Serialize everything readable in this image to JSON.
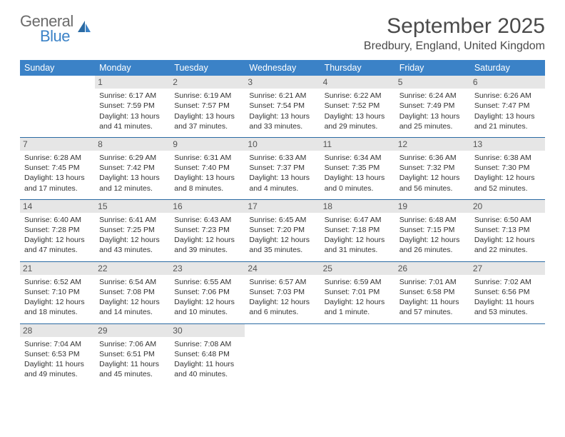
{
  "brand": {
    "line1": "General",
    "line2": "Blue"
  },
  "title": "September 2025",
  "location": "Bredbury, England, United Kingdom",
  "colors": {
    "header_bg": "#3b82c7",
    "header_text": "#ffffff",
    "daynum_bg": "#e6e6e6",
    "row_border": "#2a6aa3",
    "title_text": "#4a4a4a",
    "body_text": "#333333",
    "logo_gray": "#6b6b6b",
    "logo_blue": "#3b82c7",
    "page_bg": "#ffffff"
  },
  "typography": {
    "title_fontsize": 30,
    "location_fontsize": 16,
    "dayheader_fontsize": 12.5,
    "daynum_fontsize": 12,
    "cell_fontsize": 10.5
  },
  "layout": {
    "columns": 7,
    "rows": 5,
    "first_day_column_index": 1
  },
  "day_headers": [
    "Sunday",
    "Monday",
    "Tuesday",
    "Wednesday",
    "Thursday",
    "Friday",
    "Saturday"
  ],
  "days": [
    {
      "n": 1,
      "sunrise": "6:17 AM",
      "sunset": "7:59 PM",
      "daylight": "13 hours and 41 minutes."
    },
    {
      "n": 2,
      "sunrise": "6:19 AM",
      "sunset": "7:57 PM",
      "daylight": "13 hours and 37 minutes."
    },
    {
      "n": 3,
      "sunrise": "6:21 AM",
      "sunset": "7:54 PM",
      "daylight": "13 hours and 33 minutes."
    },
    {
      "n": 4,
      "sunrise": "6:22 AM",
      "sunset": "7:52 PM",
      "daylight": "13 hours and 29 minutes."
    },
    {
      "n": 5,
      "sunrise": "6:24 AM",
      "sunset": "7:49 PM",
      "daylight": "13 hours and 25 minutes."
    },
    {
      "n": 6,
      "sunrise": "6:26 AM",
      "sunset": "7:47 PM",
      "daylight": "13 hours and 21 minutes."
    },
    {
      "n": 7,
      "sunrise": "6:28 AM",
      "sunset": "7:45 PM",
      "daylight": "13 hours and 17 minutes."
    },
    {
      "n": 8,
      "sunrise": "6:29 AM",
      "sunset": "7:42 PM",
      "daylight": "13 hours and 12 minutes."
    },
    {
      "n": 9,
      "sunrise": "6:31 AM",
      "sunset": "7:40 PM",
      "daylight": "13 hours and 8 minutes."
    },
    {
      "n": 10,
      "sunrise": "6:33 AM",
      "sunset": "7:37 PM",
      "daylight": "13 hours and 4 minutes."
    },
    {
      "n": 11,
      "sunrise": "6:34 AM",
      "sunset": "7:35 PM",
      "daylight": "13 hours and 0 minutes."
    },
    {
      "n": 12,
      "sunrise": "6:36 AM",
      "sunset": "7:32 PM",
      "daylight": "12 hours and 56 minutes."
    },
    {
      "n": 13,
      "sunrise": "6:38 AM",
      "sunset": "7:30 PM",
      "daylight": "12 hours and 52 minutes."
    },
    {
      "n": 14,
      "sunrise": "6:40 AM",
      "sunset": "7:28 PM",
      "daylight": "12 hours and 47 minutes."
    },
    {
      "n": 15,
      "sunrise": "6:41 AM",
      "sunset": "7:25 PM",
      "daylight": "12 hours and 43 minutes."
    },
    {
      "n": 16,
      "sunrise": "6:43 AM",
      "sunset": "7:23 PM",
      "daylight": "12 hours and 39 minutes."
    },
    {
      "n": 17,
      "sunrise": "6:45 AM",
      "sunset": "7:20 PM",
      "daylight": "12 hours and 35 minutes."
    },
    {
      "n": 18,
      "sunrise": "6:47 AM",
      "sunset": "7:18 PM",
      "daylight": "12 hours and 31 minutes."
    },
    {
      "n": 19,
      "sunrise": "6:48 AM",
      "sunset": "7:15 PM",
      "daylight": "12 hours and 26 minutes."
    },
    {
      "n": 20,
      "sunrise": "6:50 AM",
      "sunset": "7:13 PM",
      "daylight": "12 hours and 22 minutes."
    },
    {
      "n": 21,
      "sunrise": "6:52 AM",
      "sunset": "7:10 PM",
      "daylight": "12 hours and 18 minutes."
    },
    {
      "n": 22,
      "sunrise": "6:54 AM",
      "sunset": "7:08 PM",
      "daylight": "12 hours and 14 minutes."
    },
    {
      "n": 23,
      "sunrise": "6:55 AM",
      "sunset": "7:06 PM",
      "daylight": "12 hours and 10 minutes."
    },
    {
      "n": 24,
      "sunrise": "6:57 AM",
      "sunset": "7:03 PM",
      "daylight": "12 hours and 6 minutes."
    },
    {
      "n": 25,
      "sunrise": "6:59 AM",
      "sunset": "7:01 PM",
      "daylight": "12 hours and 1 minute."
    },
    {
      "n": 26,
      "sunrise": "7:01 AM",
      "sunset": "6:58 PM",
      "daylight": "11 hours and 57 minutes."
    },
    {
      "n": 27,
      "sunrise": "7:02 AM",
      "sunset": "6:56 PM",
      "daylight": "11 hours and 53 minutes."
    },
    {
      "n": 28,
      "sunrise": "7:04 AM",
      "sunset": "6:53 PM",
      "daylight": "11 hours and 49 minutes."
    },
    {
      "n": 29,
      "sunrise": "7:06 AM",
      "sunset": "6:51 PM",
      "daylight": "11 hours and 45 minutes."
    },
    {
      "n": 30,
      "sunrise": "7:08 AM",
      "sunset": "6:48 PM",
      "daylight": "11 hours and 40 minutes."
    }
  ],
  "labels": {
    "sunrise_prefix": "Sunrise: ",
    "sunset_prefix": "Sunset: ",
    "daylight_prefix": "Daylight: "
  }
}
